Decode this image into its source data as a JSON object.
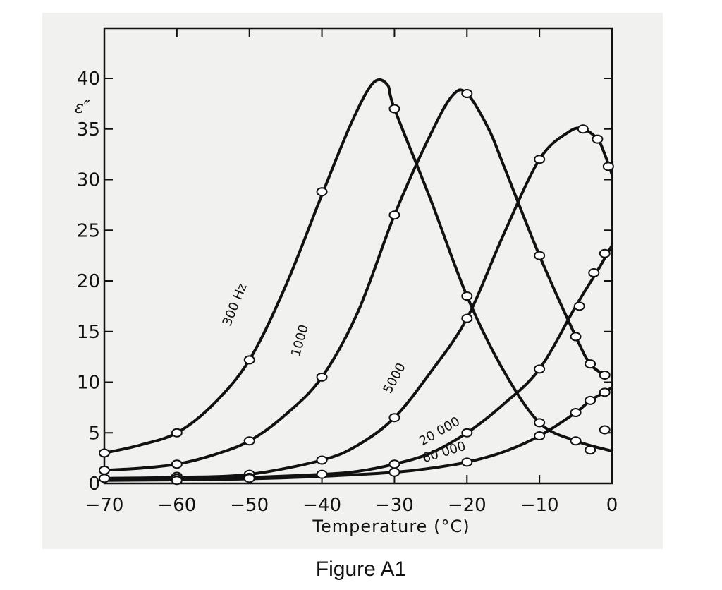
{
  "chart_data": {
    "type": "line",
    "title": "",
    "xlabel": "Temperature (°C)",
    "ylabel": "ε″",
    "xlim": [
      -70,
      0
    ],
    "ylim": [
      0,
      40
    ],
    "x_ticks": [
      -70,
      -60,
      -50,
      -40,
      -30,
      -20,
      -10,
      0
    ],
    "x_tick_labels": [
      "−70",
      "−60",
      "−50",
      "−40",
      "−30",
      "−20",
      "−10",
      "0"
    ],
    "y_ticks": [
      0,
      5,
      10,
      15,
      20,
      25,
      30,
      35,
      40
    ],
    "y_tick_labels": [
      "0",
      "5",
      "10",
      "15",
      "20",
      "25",
      "30",
      "35",
      "40"
    ],
    "grid": false,
    "legend": "none",
    "series": [
      {
        "name": "300 Hz",
        "line": [
          [
            -70,
            3.0
          ],
          [
            -65,
            3.8
          ],
          [
            -60,
            5.0
          ],
          [
            -55,
            7.8
          ],
          [
            -50,
            12.2
          ],
          [
            -45,
            19.5
          ],
          [
            -40,
            28.5
          ],
          [
            -36,
            35.5
          ],
          [
            -33,
            39.5
          ],
          [
            -31,
            39.4
          ],
          [
            -30,
            37.0
          ],
          [
            -25,
            28.0
          ],
          [
            -20,
            18.5
          ],
          [
            -15,
            11.2
          ],
          [
            -10,
            6.0
          ],
          [
            -5,
            4.2
          ],
          [
            0,
            3.2
          ]
        ],
        "markers": [
          [
            -70,
            3.0
          ],
          [
            -60,
            5.0
          ],
          [
            -50,
            12.2
          ],
          [
            -40,
            28.8
          ],
          [
            -30,
            37.0
          ],
          [
            -20,
            18.5
          ],
          [
            -10,
            6.0
          ],
          [
            -5,
            4.2
          ],
          [
            -3,
            3.3
          ]
        ]
      },
      {
        "name": "1000",
        "line": [
          [
            -70,
            1.3
          ],
          [
            -65,
            1.5
          ],
          [
            -60,
            1.9
          ],
          [
            -55,
            2.8
          ],
          [
            -50,
            4.2
          ],
          [
            -45,
            6.8
          ],
          [
            -40,
            10.5
          ],
          [
            -35,
            17.0
          ],
          [
            -30,
            26.5
          ],
          [
            -25,
            34.5
          ],
          [
            -22,
            38.3
          ],
          [
            -20,
            38.5
          ],
          [
            -17,
            35.0
          ],
          [
            -15,
            31.5
          ],
          [
            -10,
            22.5
          ],
          [
            -5,
            14.5
          ],
          [
            -3,
            11.8
          ],
          [
            -1,
            10.7
          ]
        ],
        "markers": [
          [
            -70,
            1.3
          ],
          [
            -60,
            1.9
          ],
          [
            -50,
            4.2
          ],
          [
            -40,
            10.5
          ],
          [
            -30,
            26.5
          ],
          [
            -20,
            38.5
          ],
          [
            -10,
            22.5
          ],
          [
            -5,
            14.5
          ],
          [
            -3,
            11.8
          ],
          [
            -1,
            10.7
          ]
        ]
      },
      {
        "name": "5000",
        "line": [
          [
            -70,
            0.5
          ],
          [
            -60,
            0.6
          ],
          [
            -50,
            0.9
          ],
          [
            -40,
            2.3
          ],
          [
            -35,
            3.8
          ],
          [
            -30,
            6.5
          ],
          [
            -25,
            11.0
          ],
          [
            -20,
            16.3
          ],
          [
            -15,
            24.5
          ],
          [
            -10,
            32.0
          ],
          [
            -6,
            34.7
          ],
          [
            -4,
            35.0
          ],
          [
            -2,
            34.0
          ],
          [
            -1,
            32.5
          ],
          [
            0,
            30.5
          ]
        ],
        "markers": [
          [
            -70,
            0.5
          ],
          [
            -60,
            0.7
          ],
          [
            -50,
            0.9
          ],
          [
            -40,
            2.3
          ],
          [
            -30,
            6.5
          ],
          [
            -20,
            16.3
          ],
          [
            -10,
            32.0
          ],
          [
            -4,
            35.0
          ],
          [
            -2,
            34.0
          ],
          [
            -0.5,
            31.3
          ]
        ]
      },
      {
        "name": "20 000",
        "line": [
          [
            -70,
            0.4
          ],
          [
            -60,
            0.5
          ],
          [
            -50,
            0.6
          ],
          [
            -40,
            0.9
          ],
          [
            -35,
            1.2
          ],
          [
            -30,
            1.9
          ],
          [
            -25,
            3.0
          ],
          [
            -20,
            5.0
          ],
          [
            -15,
            7.8
          ],
          [
            -10,
            11.3
          ],
          [
            -5,
            17.5
          ],
          [
            -2,
            21.0
          ],
          [
            0,
            23.5
          ]
        ],
        "markers": [
          [
            -60,
            0.5
          ],
          [
            -50,
            0.6
          ],
          [
            -40,
            0.9
          ],
          [
            -30,
            1.9
          ],
          [
            -20,
            5.0
          ],
          [
            -10,
            11.3
          ],
          [
            -4.5,
            17.5
          ],
          [
            -2.5,
            20.8
          ],
          [
            -1,
            22.7
          ]
        ]
      },
      {
        "name": "60 000",
        "line": [
          [
            -70,
            0.3
          ],
          [
            -60,
            0.35
          ],
          [
            -50,
            0.45
          ],
          [
            -40,
            0.7
          ],
          [
            -30,
            1.1
          ],
          [
            -25,
            1.5
          ],
          [
            -20,
            2.1
          ],
          [
            -15,
            3.1
          ],
          [
            -10,
            4.7
          ],
          [
            -5,
            7.0
          ],
          [
            -3,
            8.2
          ],
          [
            -1,
            9.0
          ],
          [
            0,
            9.5
          ]
        ],
        "markers": [
          [
            -60,
            0.3
          ],
          [
            -50,
            0.5
          ],
          [
            -30,
            1.1
          ],
          [
            -20,
            2.1
          ],
          [
            -10,
            4.7
          ],
          [
            -5,
            7.0
          ],
          [
            -3,
            8.2
          ],
          [
            -1,
            9.0
          ],
          [
            -1,
            5.3
          ]
        ]
      }
    ]
  },
  "caption": "Figure A1"
}
